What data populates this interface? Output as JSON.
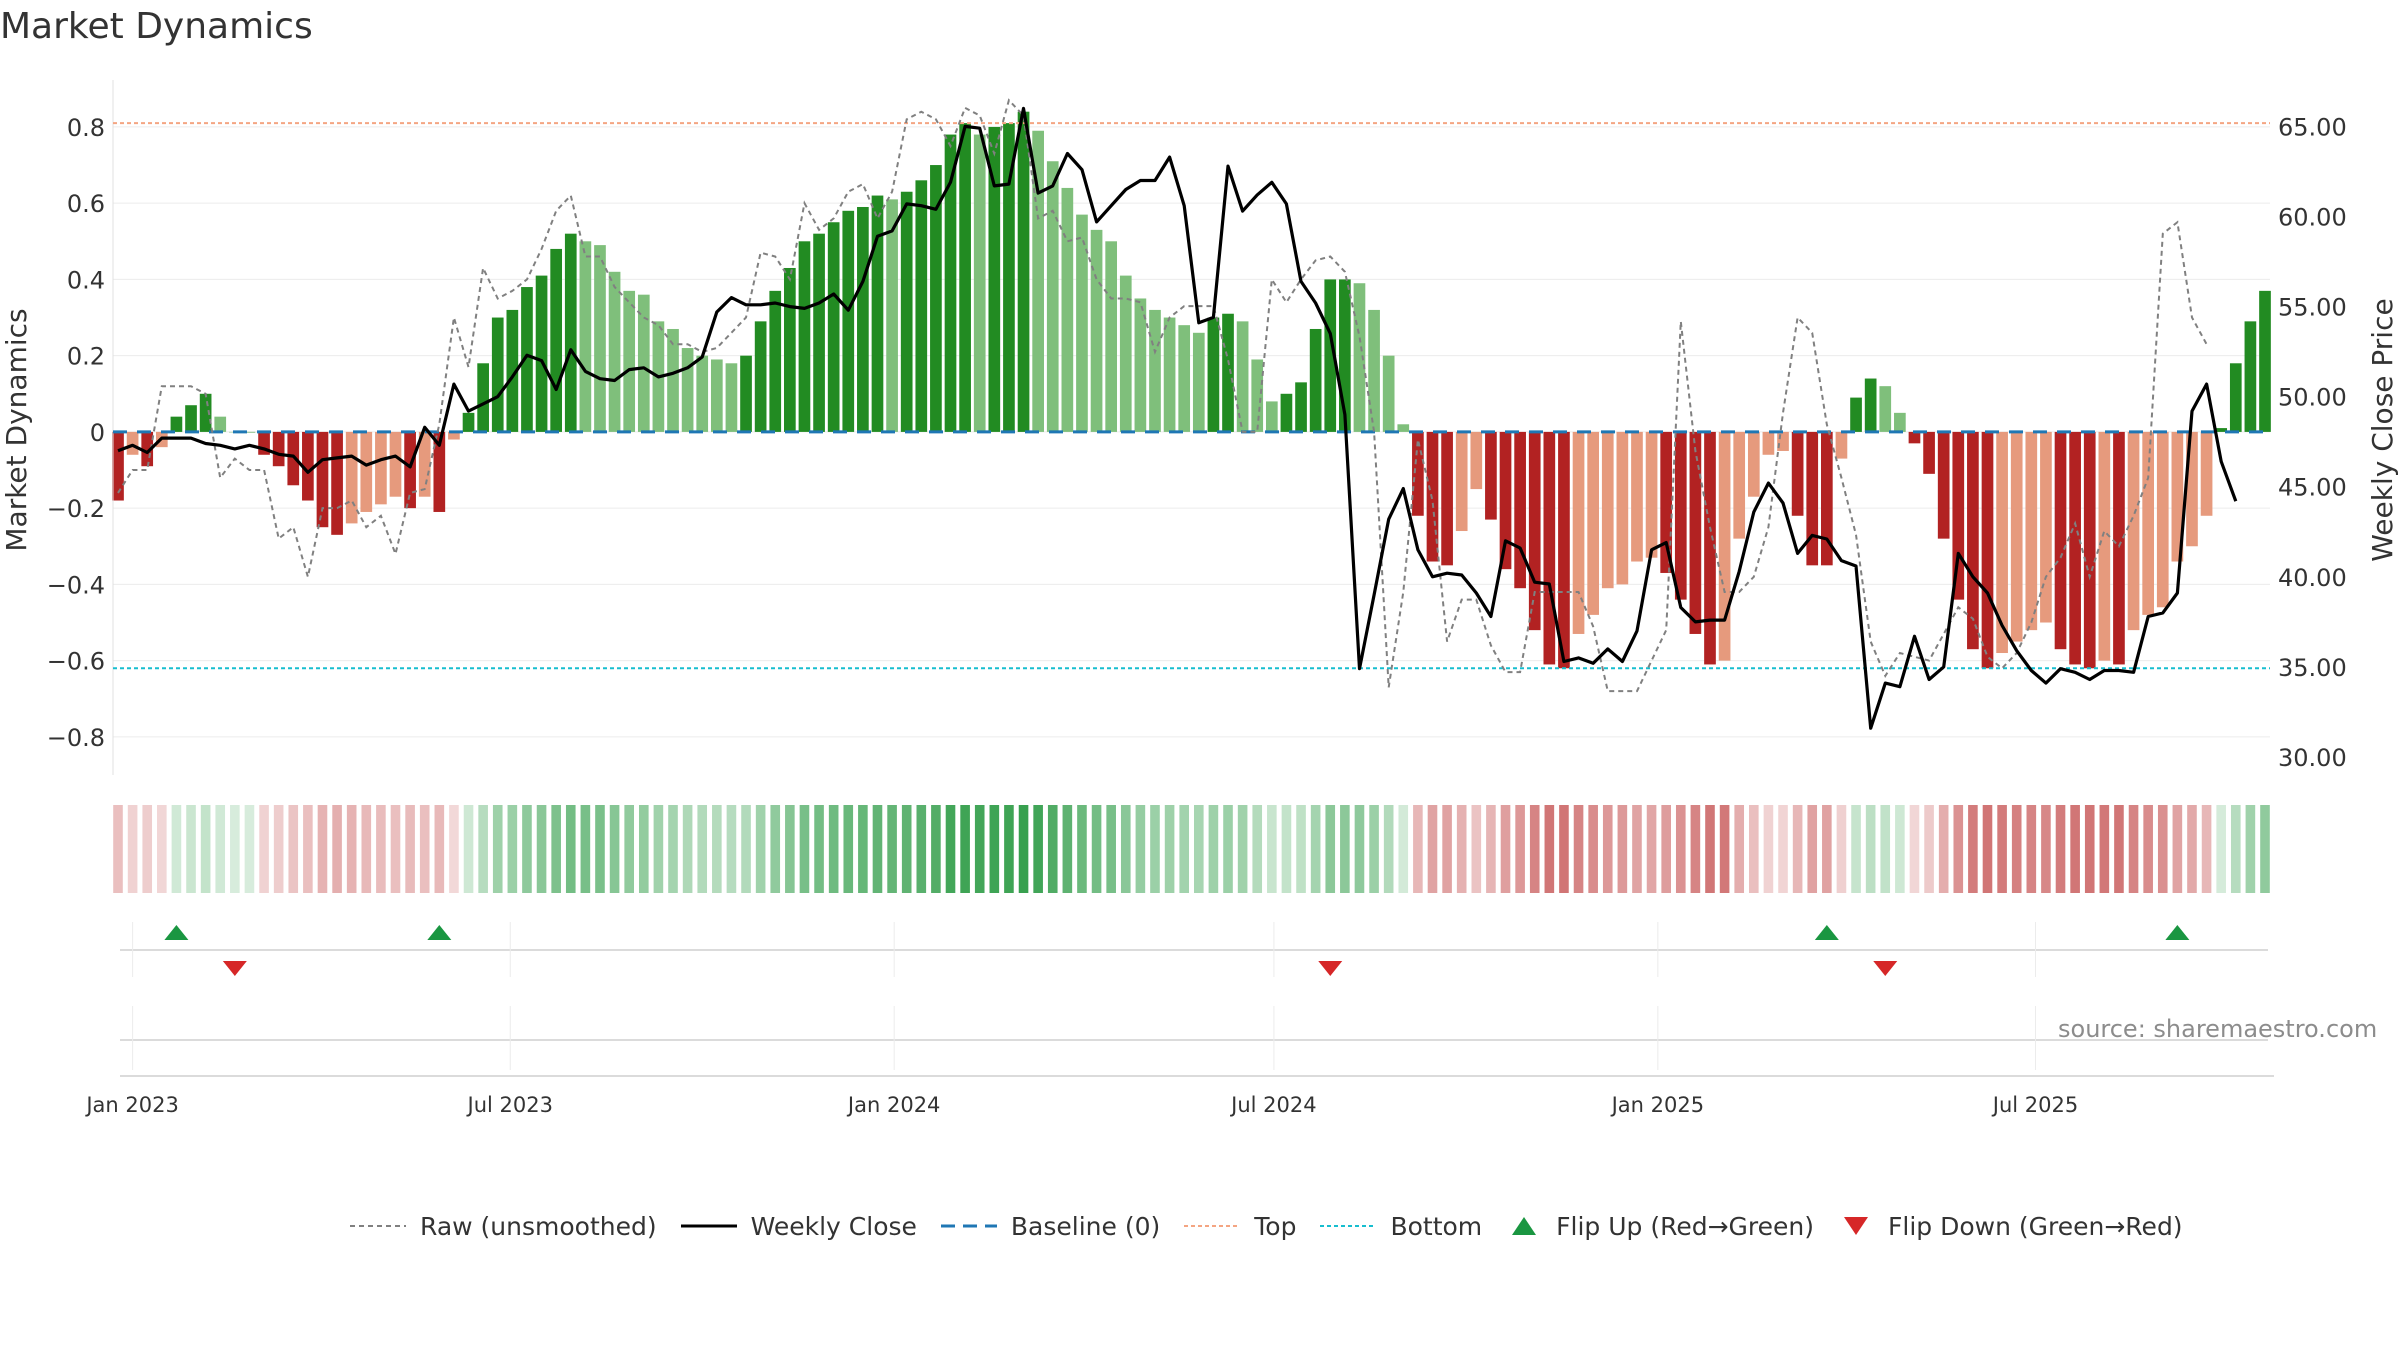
{
  "title": "Market Dynamics",
  "source": "source: sharemaestro.com",
  "colors": {
    "strong_green": "#228b22",
    "light_green": "#7fbf7b",
    "strong_red": "#b22222",
    "light_red": "#e69a7d",
    "close_line": "#000000",
    "raw_line": "#808080",
    "baseline": "#1f77b4",
    "top": "#f4a582",
    "bottom": "#17becf",
    "flip_up": "#1a9641",
    "flip_down": "#d62728"
  },
  "legend": [
    {
      "label": "Raw (unsmoothed)",
      "icon": "dashed-gray-line"
    },
    {
      "label": "Weekly Close",
      "icon": "solid-black-line"
    },
    {
      "label": "Baseline (0)",
      "icon": "dashed-blue-line"
    },
    {
      "label": "Top",
      "icon": "dotted-orange-line"
    },
    {
      "label": "Bottom",
      "icon": "dotted-cyan-line"
    },
    {
      "label": "Flip Up (Red→Green)",
      "icon": "green-up-triangle"
    },
    {
      "label": "Flip Down (Green→Red)",
      "icon": "red-down-triangle"
    }
  ],
  "chart_data": {
    "type": "bar",
    "title": "Market Dynamics",
    "ylabel": "Market Dynamics",
    "y2label": "Weekly Close Price",
    "ylim": [
      -0.9,
      0.91
    ],
    "y2lim": [
      29.0,
      67.3
    ],
    "yticks": [
      "−0.8",
      "−0.6",
      "−0.4",
      "−0.2",
      "0",
      "0.2",
      "0.4",
      "0.6",
      "0.8"
    ],
    "y2ticks": [
      "30.00",
      "35.00",
      "40.00",
      "45.00",
      "50.00",
      "55.00",
      "60.00",
      "65.00"
    ],
    "xtick_labels": [
      "Jan 2023",
      "Jul 2023",
      "Jan 2024",
      "Jul 2024",
      "Jan 2025",
      "Jul 2025"
    ],
    "start_date": "2022-12-25",
    "interval_days": 7,
    "top_level": 0.81,
    "bottom_level": -0.62,
    "baseline": 0,
    "grid": true,
    "legend_position": "bottom",
    "momentum": [
      -0.18,
      -0.06,
      -0.09,
      -0.04,
      0.04,
      0.07,
      0.1,
      0.04,
      0.0,
      0.0,
      -0.06,
      -0.09,
      -0.14,
      -0.18,
      -0.25,
      -0.27,
      -0.24,
      -0.21,
      -0.19,
      -0.17,
      -0.2,
      -0.17,
      -0.21,
      -0.02,
      0.05,
      0.18,
      0.3,
      0.32,
      0.38,
      0.41,
      0.48,
      0.52,
      0.5,
      0.49,
      0.42,
      0.37,
      0.36,
      0.29,
      0.27,
      0.22,
      0.2,
      0.19,
      0.18,
      0.2,
      0.29,
      0.37,
      0.43,
      0.5,
      0.52,
      0.55,
      0.58,
      0.59,
      0.62,
      0.61,
      0.63,
      0.66,
      0.7,
      0.78,
      0.81,
      0.78,
      0.8,
      0.81,
      0.84,
      0.79,
      0.71,
      0.64,
      0.57,
      0.53,
      0.5,
      0.41,
      0.35,
      0.32,
      0.3,
      0.28,
      0.26,
      0.3,
      0.31,
      0.29,
      0.19,
      0.08,
      0.1,
      0.13,
      0.27,
      0.4,
      0.4,
      0.39,
      0.32,
      0.2,
      0.02,
      -0.22,
      -0.34,
      -0.35,
      -0.26,
      -0.15,
      -0.23,
      -0.36,
      -0.41,
      -0.52,
      -0.61,
      -0.62,
      -0.53,
      -0.48,
      -0.41,
      -0.4,
      -0.34,
      -0.33,
      -0.37,
      -0.44,
      -0.53,
      -0.61,
      -0.6,
      -0.28,
      -0.17,
      -0.06,
      -0.05,
      -0.22,
      -0.35,
      -0.35,
      -0.07,
      0.09,
      0.14,
      0.12,
      0.05,
      -0.03,
      -0.11,
      -0.28,
      -0.44,
      -0.57,
      -0.62,
      -0.58,
      -0.55,
      -0.52,
      -0.5,
      -0.57,
      -0.61,
      -0.62,
      -0.6,
      -0.61,
      -0.52,
      -0.48,
      -0.46,
      -0.34,
      -0.3,
      -0.22,
      0.01,
      0.18,
      0.29,
      0.37
    ],
    "raw": [
      -0.16,
      -0.1,
      -0.1,
      0.12,
      0.12,
      0.12,
      0.1,
      -0.12,
      -0.07,
      -0.1,
      -0.1,
      -0.28,
      -0.25,
      -0.38,
      -0.2,
      -0.2,
      -0.18,
      -0.25,
      -0.22,
      -0.32,
      -0.16,
      -0.15,
      0.02,
      0.3,
      0.17,
      0.43,
      0.35,
      0.37,
      0.4,
      0.48,
      0.58,
      0.62,
      0.46,
      0.46,
      0.38,
      0.34,
      0.3,
      0.28,
      0.23,
      0.23,
      0.21,
      0.22,
      0.26,
      0.3,
      0.47,
      0.46,
      0.4,
      0.6,
      0.53,
      0.56,
      0.63,
      0.65,
      0.56,
      0.63,
      0.82,
      0.84,
      0.82,
      0.75,
      0.85,
      0.83,
      0.73,
      0.87,
      0.83,
      0.56,
      0.58,
      0.5,
      0.51,
      0.4,
      0.35,
      0.35,
      0.34,
      0.21,
      0.3,
      0.33,
      0.33,
      0.33,
      0.19,
      0.0,
      0.0,
      0.4,
      0.34,
      0.4,
      0.45,
      0.46,
      0.42,
      0.25,
      0.0,
      -0.67,
      -0.42,
      -0.02,
      -0.18,
      -0.55,
      -0.44,
      -0.44,
      -0.56,
      -0.63,
      -0.63,
      -0.42,
      -0.42,
      -0.42,
      -0.42,
      -0.51,
      -0.68,
      -0.68,
      -0.68,
      -0.6,
      -0.52,
      0.29,
      -0.05,
      -0.25,
      -0.42,
      -0.42,
      -0.38,
      -0.25,
      0.05,
      0.3,
      0.26,
      0.02,
      -0.12,
      -0.27,
      -0.55,
      -0.64,
      -0.58,
      -0.59,
      -0.6,
      -0.53,
      -0.46,
      -0.49,
      -0.59,
      -0.62,
      -0.58,
      -0.5,
      -0.38,
      -0.33,
      -0.24,
      -0.38,
      -0.26,
      -0.3,
      -0.22,
      -0.12,
      0.52,
      0.55,
      0.3,
      0.23
    ],
    "weekly_close": [
      47.0,
      47.3,
      46.9,
      47.7,
      47.7,
      47.7,
      47.4,
      47.3,
      47.1,
      47.3,
      47.1,
      46.8,
      46.7,
      45.8,
      46.5,
      46.6,
      46.7,
      46.2,
      46.5,
      46.7,
      46.1,
      48.3,
      47.3,
      50.7,
      49.2,
      49.6,
      50.0,
      51.1,
      52.3,
      52.0,
      50.4,
      52.6,
      51.4,
      51.0,
      50.9,
      51.5,
      51.6,
      51.1,
      51.3,
      51.6,
      52.2,
      54.7,
      55.5,
      55.1,
      55.1,
      55.2,
      55.0,
      54.9,
      55.2,
      55.7,
      54.8,
      56.4,
      58.9,
      59.2,
      60.7,
      60.6,
      60.4,
      61.9,
      65.0,
      64.9,
      61.7,
      61.8,
      66.0,
      61.3,
      61.7,
      63.5,
      62.6,
      59.7,
      60.6,
      61.5,
      62.0,
      62.0,
      63.3,
      60.6,
      54.1,
      54.4,
      62.8,
      60.3,
      61.2,
      61.9,
      60.7,
      56.4,
      55.2,
      53.5,
      49.0,
      34.9,
      39.0,
      43.2,
      44.9,
      41.5,
      40.0,
      40.2,
      40.1,
      39.1,
      37.8,
      42.0,
      41.6,
      39.7,
      39.6,
      35.3,
      35.5,
      35.2,
      36.0,
      35.3,
      37.0,
      41.5,
      41.9,
      38.3,
      37.5,
      37.6,
      37.6,
      40.3,
      43.6,
      45.2,
      44.1,
      41.3,
      42.3,
      42.1,
      40.9,
      40.6,
      31.6,
      34.1,
      33.9,
      36.7,
      34.3,
      35.0,
      41.3,
      40.0,
      39.1,
      37.3,
      35.9,
      34.8,
      34.1,
      34.9,
      34.7,
      34.3,
      34.8,
      34.8,
      34.7,
      37.8,
      38.0,
      39.1,
      49.2,
      50.7,
      46.4,
      44.2
    ],
    "flip_up": [
      "2023-01-22",
      "2023-05-28",
      "2025-03-23",
      "2025-09-07"
    ],
    "flip_down": [
      "2023-02-19",
      "2024-07-28",
      "2025-04-20"
    ]
  }
}
